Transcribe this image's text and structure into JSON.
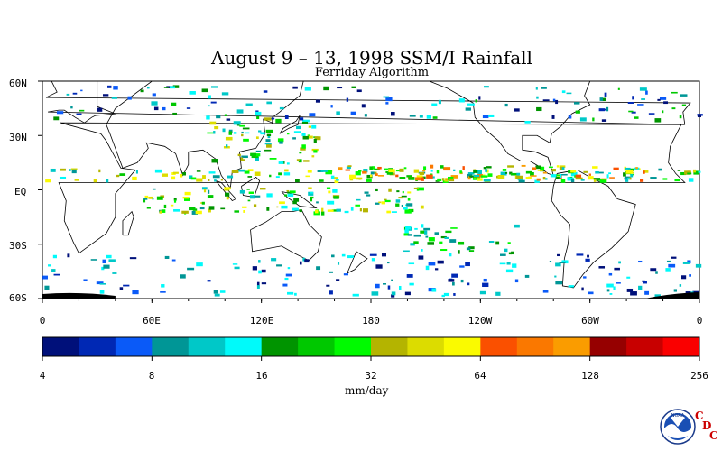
{
  "title": "August 9 – 13, 1998 SSM/I Rainfall",
  "subtitle": "Ferriday Algorithm",
  "lat_labels": [
    "60N",
    "30N",
    "EQ",
    "30S",
    "60S"
  ],
  "lon_labels": [
    "0",
    "60E",
    "120E",
    "180",
    "120W",
    "60W",
    "0"
  ],
  "colorbar": {
    "ticks": [
      "4",
      "8",
      "16",
      "32",
      "64",
      "128",
      "256"
    ],
    "unit": "mm/day",
    "colors": [
      "#00107a",
      "#0028b4",
      "#0a5af8",
      "#009696",
      "#00c8c8",
      "#00fafa",
      "#009400",
      "#00c800",
      "#00fa00",
      "#b4b400",
      "#dcdc00",
      "#fafa00",
      "#fa5000",
      "#fa7800",
      "#fa9c00",
      "#960000",
      "#c80000",
      "#fa0000"
    ]
  },
  "logo": {
    "agency": "NOAA",
    "letters": [
      "C",
      "D",
      "C"
    ]
  }
}
